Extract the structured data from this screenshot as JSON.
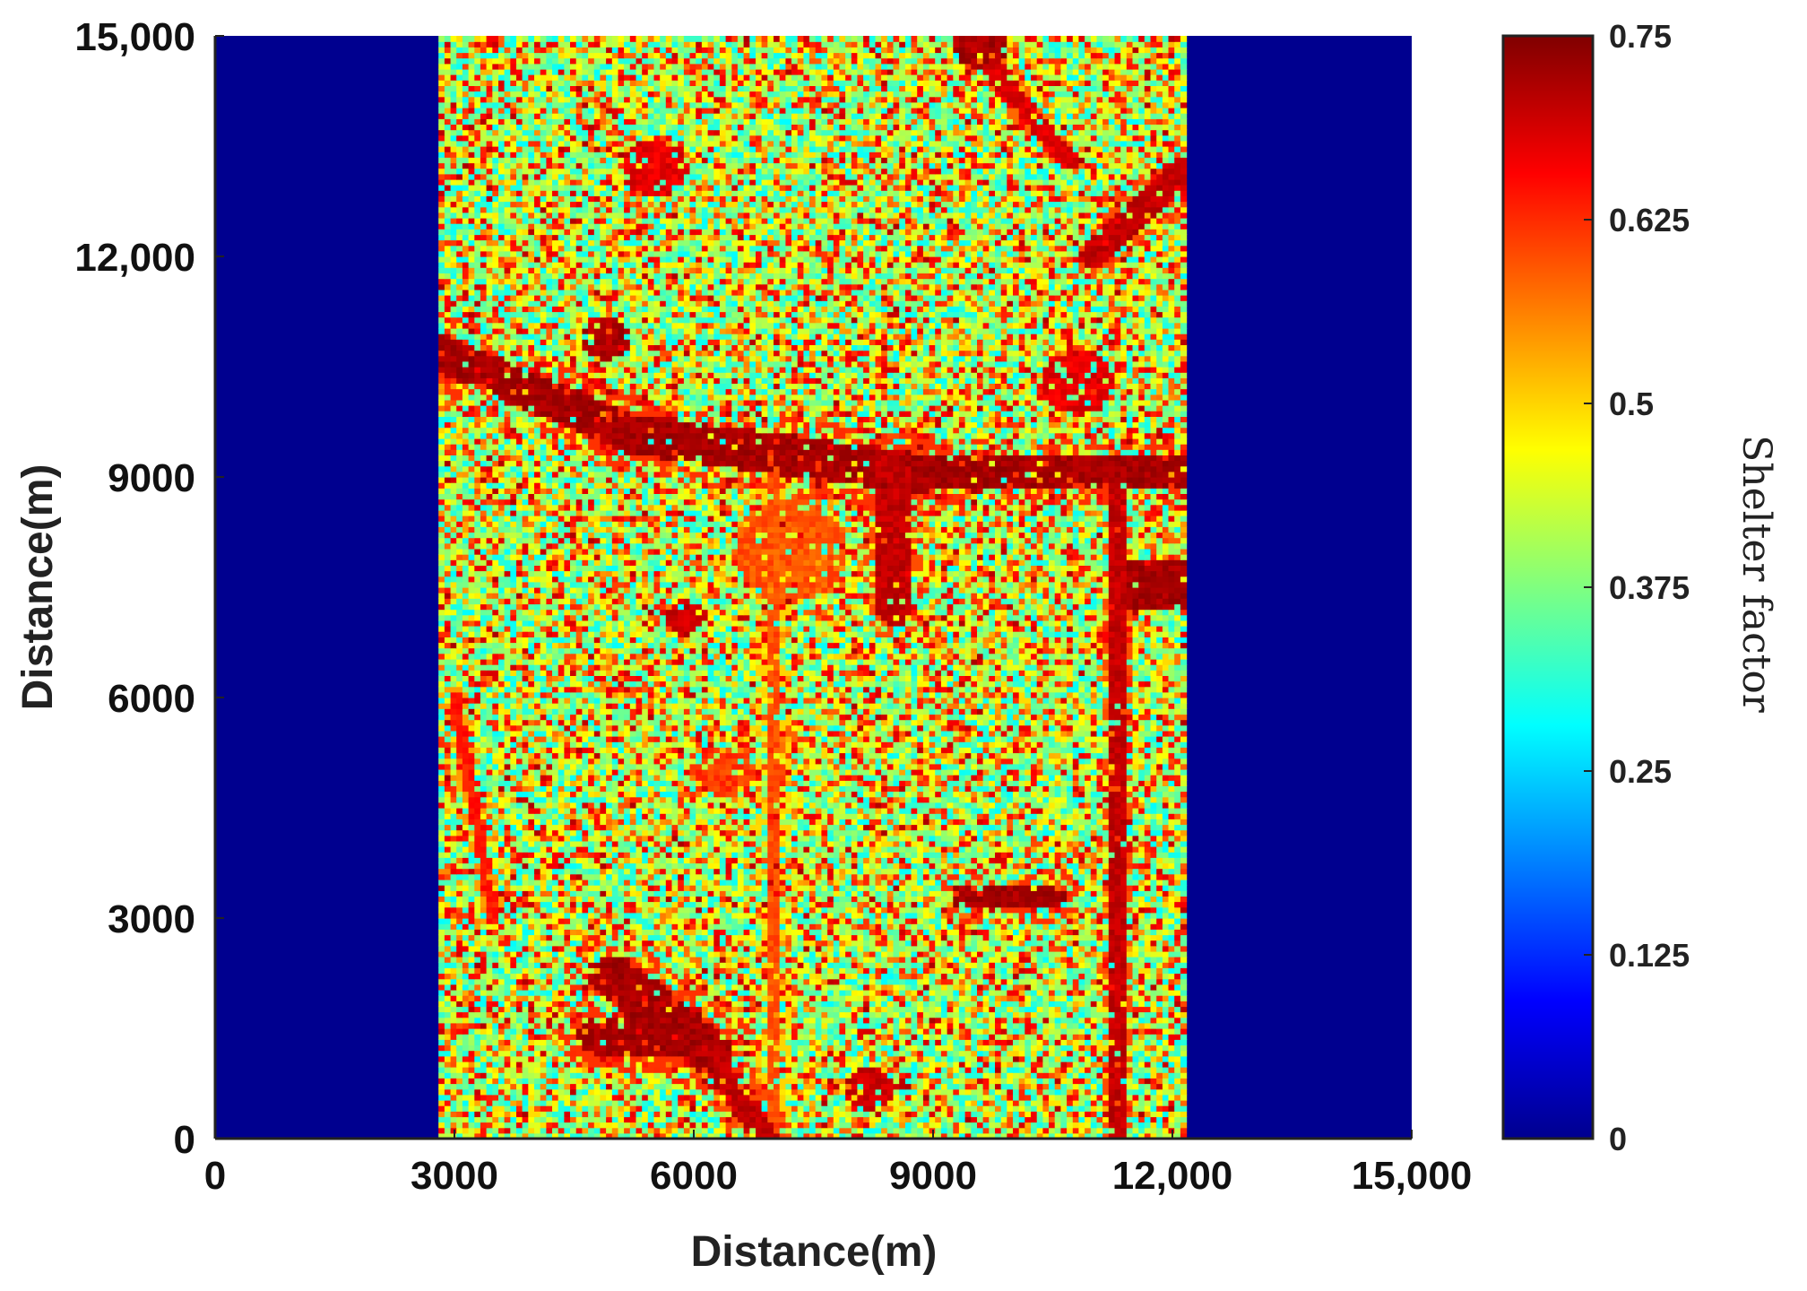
{
  "chart_data": {
    "type": "heatmap",
    "xlabel": "Distance(m)",
    "ylabel": "Distance(m)",
    "xlim": [
      0,
      15000
    ],
    "ylim": [
      0,
      15000
    ],
    "x_ticks": [
      "0",
      "3000",
      "6000",
      "9000",
      "12,000",
      "15,000"
    ],
    "y_ticks": [
      "0",
      "3000",
      "6000",
      "9000",
      "12,000",
      "15,000"
    ],
    "x_tick_values": [
      0,
      3000,
      6000,
      9000,
      12000,
      15000
    ],
    "y_tick_values": [
      0,
      3000,
      6000,
      9000,
      12000,
      15000
    ],
    "data_extent_x": [
      2800,
      12150
    ],
    "background_value": 0,
    "colormap": "jet",
    "colorbar": {
      "label": "Shelter factor",
      "range": [
        0,
        0.75
      ],
      "ticks": [
        "0",
        "0.125",
        "0.25",
        "0.375",
        "0.5",
        "0.625",
        "0.75"
      ],
      "tick_values": [
        0,
        0.125,
        0.25,
        0.375,
        0.5,
        0.625,
        0.75
      ]
    },
    "features": [
      {
        "kind": "band",
        "from": [
          2800,
          10700
        ],
        "to": [
          5200,
          9600
        ],
        "value": 0.74,
        "width": 500
      },
      {
        "kind": "band",
        "from": [
          5200,
          9600
        ],
        "to": [
          8800,
          9050
        ],
        "value": 0.74,
        "width": 550
      },
      {
        "kind": "band",
        "from": [
          8800,
          9050
        ],
        "to": [
          12150,
          9100
        ],
        "value": 0.74,
        "width": 450
      },
      {
        "kind": "block",
        "x": [
          11300,
          12150
        ],
        "y": [
          7200,
          7900
        ],
        "value": 0.74
      },
      {
        "kind": "band",
        "from": [
          8500,
          9200
        ],
        "to": [
          8500,
          7200
        ],
        "value": 0.72,
        "width": 400
      },
      {
        "kind": "band",
        "from": [
          7000,
          9200
        ],
        "to": [
          7000,
          0
        ],
        "value": 0.62,
        "width": 200
      },
      {
        "kind": "band",
        "from": [
          11300,
          8800
        ],
        "to": [
          11300,
          0
        ],
        "value": 0.72,
        "width": 200
      },
      {
        "kind": "band",
        "from": [
          9400,
          3300
        ],
        "to": [
          10500,
          3300
        ],
        "value": 0.74,
        "width": 350
      },
      {
        "kind": "band",
        "from": [
          5000,
          2200
        ],
        "to": [
          6200,
          1200
        ],
        "value": 0.74,
        "width": 600
      },
      {
        "kind": "band",
        "from": [
          6200,
          1200
        ],
        "to": [
          6900,
          0
        ],
        "value": 0.72,
        "width": 350
      },
      {
        "kind": "band",
        "from": [
          4800,
          1400
        ],
        "to": [
          5700,
          1400
        ],
        "value": 0.74,
        "width": 500
      },
      {
        "kind": "band",
        "from": [
          11000,
          12000
        ],
        "to": [
          12150,
          13200
        ],
        "value": 0.72,
        "width": 350
      },
      {
        "kind": "band",
        "from": [
          9700,
          14600
        ],
        "to": [
          10700,
          13300
        ],
        "value": 0.7,
        "width": 250
      },
      {
        "kind": "band",
        "from": [
          3000,
          6000
        ],
        "to": [
          3500,
          3000
        ],
        "value": 0.66,
        "width": 150
      },
      {
        "kind": "blob",
        "center": [
          9600,
          14900
        ],
        "radius": 350,
        "value": 0.74
      },
      {
        "kind": "blob",
        "center": [
          4900,
          10900
        ],
        "radius": 300,
        "value": 0.74
      },
      {
        "kind": "blob",
        "center": [
          5900,
          7100
        ],
        "radius": 250,
        "value": 0.72
      },
      {
        "kind": "blob",
        "center": [
          10800,
          10300
        ],
        "radius": 450,
        "value": 0.7
      },
      {
        "kind": "blob",
        "center": [
          7200,
          8000
        ],
        "radius": 700,
        "value": 0.62
      },
      {
        "kind": "blob",
        "center": [
          5500,
          13200
        ],
        "radius": 400,
        "value": 0.7
      },
      {
        "kind": "blob",
        "center": [
          6400,
          5000
        ],
        "radius": 350,
        "value": 0.64
      },
      {
        "kind": "blob",
        "center": [
          8200,
          700
        ],
        "radius": 300,
        "value": 0.72
      }
    ]
  }
}
